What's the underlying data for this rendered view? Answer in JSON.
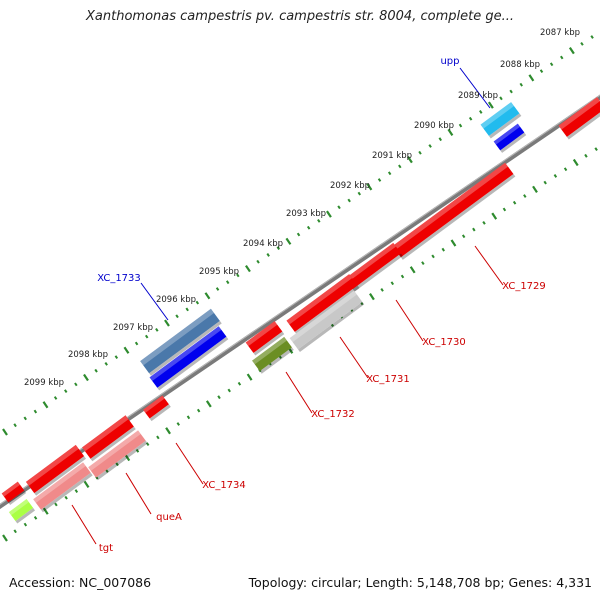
{
  "title": "Xanthomonas campestris pv. campestris str. 8004, complete ge...",
  "footer": {
    "accession": "Accession: NC_007086",
    "summary": "Topology: circular; Length: 5,148,708 bp; Genes: 4,331"
  },
  "scale_labels": [
    "2087 kbp",
    "2088 kbp",
    "2089 kbp",
    "2090 kbp",
    "2091 kbp",
    "2092 kbp",
    "2093 kbp",
    "2094 kbp",
    "2095 kbp",
    "2096 kbp",
    "2097 kbp",
    "2098 kbp",
    "2099 kbp"
  ],
  "gene_labels": [
    {
      "name": "upp",
      "color": "#0000cc"
    },
    {
      "name": "XC_1733",
      "color": "#0000cc"
    },
    {
      "name": "XC_1729",
      "color": "#cc0000"
    },
    {
      "name": "XC_1730",
      "color": "#cc0000"
    },
    {
      "name": "XC_1731",
      "color": "#cc0000"
    },
    {
      "name": "XC_1732",
      "color": "#cc0000"
    },
    {
      "name": "XC_1734",
      "color": "#cc0000"
    },
    {
      "name": "queA",
      "color": "#cc0000"
    },
    {
      "name": "tgt",
      "color": "#cc0000"
    }
  ],
  "colors": {
    "backbone": "#7a7a7a",
    "tick_green": "#2e8b2e",
    "cds_red": "#ee0000",
    "cds_blue": "#0000ee",
    "cds_steel": "#4a78aa",
    "cds_cyan": "#22bbee",
    "cds_pink": "#f08a8a",
    "cds_gray": "#c8c8c8",
    "cds_olive": "#6b8e23",
    "cds_lime": "#aaff44"
  }
}
